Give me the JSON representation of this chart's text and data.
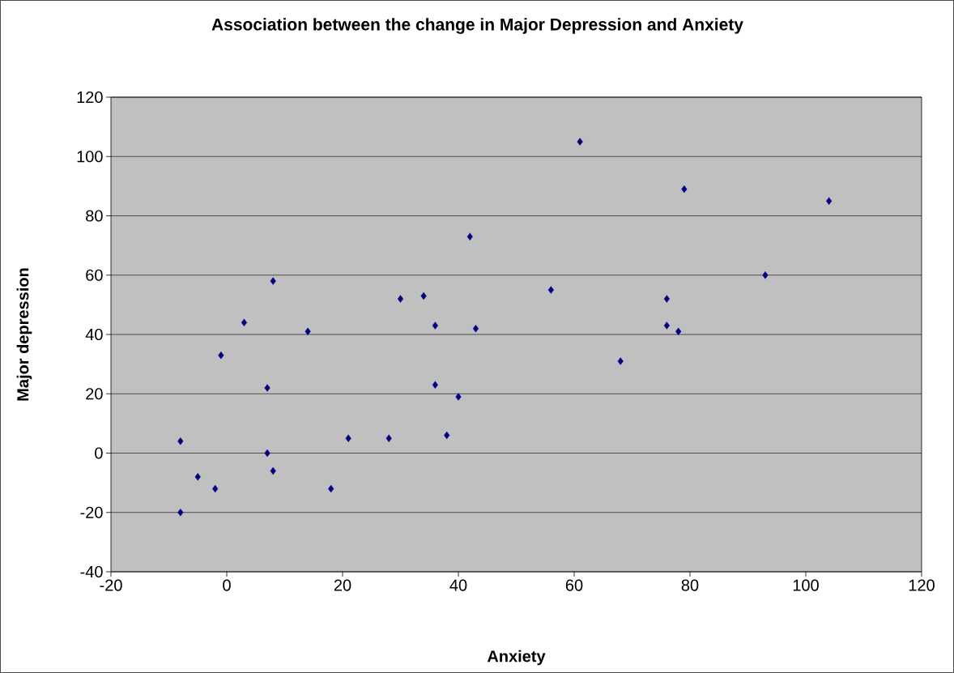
{
  "chart_data": {
    "type": "scatter",
    "title": "Association between the change in Major Depression and Anxiety",
    "xlabel": "Anxiety",
    "ylabel": "Major depression",
    "x": [
      -8,
      -8,
      -5,
      -2,
      -1,
      3,
      7,
      7,
      8,
      8,
      14,
      18,
      21,
      28,
      30,
      34,
      36,
      36,
      38,
      40,
      42,
      43,
      56,
      61,
      68,
      76,
      76,
      78,
      79,
      93,
      104
    ],
    "values": [
      4,
      -20,
      -8,
      -12,
      33,
      44,
      22,
      0,
      58,
      -6,
      41,
      -12,
      5,
      5,
      52,
      53,
      43,
      23,
      6,
      19,
      73,
      42,
      55,
      105,
      31,
      52,
      43,
      41,
      89,
      60,
      85
    ],
    "color": "#000080",
    "marker": "diamond",
    "grid": "y",
    "xlim": [
      -20,
      120
    ],
    "xticks": [
      -20,
      0,
      20,
      40,
      60,
      80,
      100,
      120
    ],
    "ylim": [
      -40,
      120
    ],
    "yticks": [
      -40,
      -20,
      0,
      20,
      40,
      60,
      80,
      100,
      120
    ]
  }
}
